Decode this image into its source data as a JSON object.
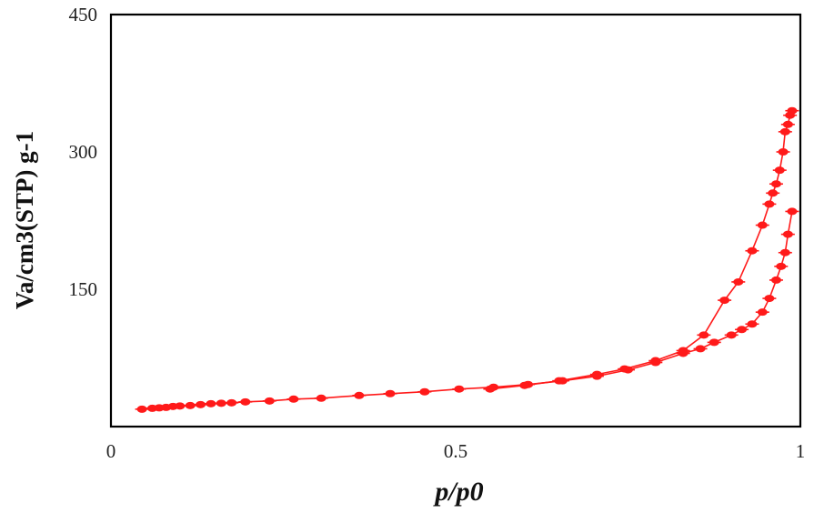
{
  "chart_data": {
    "type": "line",
    "title": "",
    "xlabel": "p/p0",
    "ylabel": "Va/cm3(STP) g-1",
    "xlim": [
      0,
      1
    ],
    "ylim": [
      0,
      450
    ],
    "x_ticks": [
      {
        "value": 0,
        "label": "0"
      },
      {
        "value": 0.5,
        "label": "0.5"
      },
      {
        "value": 1,
        "label": "1"
      }
    ],
    "y_ticks": [
      {
        "value": 150,
        "label": "150"
      },
      {
        "value": 300,
        "label": "300"
      },
      {
        "value": 450,
        "label": "450"
      }
    ],
    "grid": false,
    "legend": "none",
    "color": "#ff1a1a",
    "series": [
      {
        "x": [
          0.045,
          0.06,
          0.07,
          0.08,
          0.09,
          0.1,
          0.115,
          0.13,
          0.145,
          0.16,
          0.175,
          0.195,
          0.23,
          0.265,
          0.305,
          0.36,
          0.405,
          0.455,
          0.505,
          0.555,
          0.605,
          0.655,
          0.705,
          0.75,
          0.79,
          0.83,
          0.855,
          0.875,
          0.9,
          0.915,
          0.93,
          0.945,
          0.955,
          0.965,
          0.972,
          0.978,
          0.982,
          0.988
        ],
        "y": [
          19,
          20,
          20.5,
          21,
          22,
          22.5,
          23,
          24,
          25,
          25.5,
          26,
          27,
          28,
          30,
          31,
          34,
          36,
          38,
          41,
          43,
          46,
          50,
          55,
          62,
          70,
          80,
          85,
          92,
          100,
          106,
          112,
          125,
          140,
          160,
          175,
          190,
          210,
          235
        ]
      },
      {
        "x": [
          0.988,
          0.985,
          0.982,
          0.978,
          0.975,
          0.97,
          0.965,
          0.96,
          0.955,
          0.945,
          0.93,
          0.91,
          0.89,
          0.86,
          0.83,
          0.79,
          0.745,
          0.705,
          0.65,
          0.6,
          0.55
        ],
        "y": [
          345,
          340,
          330,
          322,
          300,
          280,
          265,
          255,
          243,
          220,
          192,
          158,
          138,
          100,
          83,
          72,
          63,
          57,
          50,
          45,
          41
        ]
      }
    ]
  }
}
